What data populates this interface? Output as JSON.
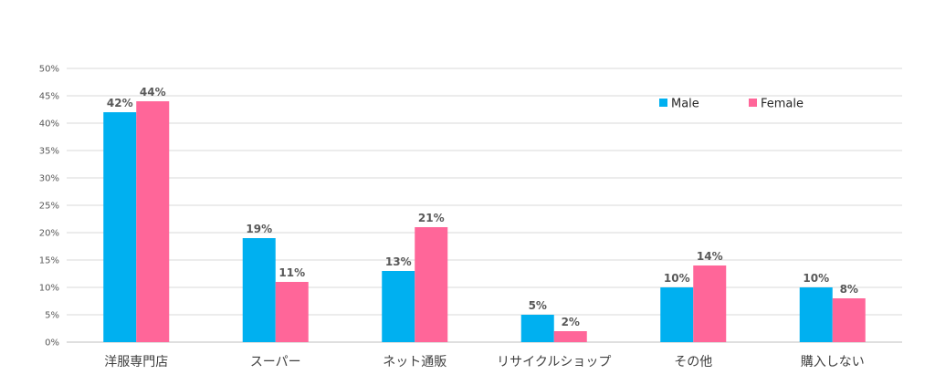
{
  "chart_data": {
    "type": "bar",
    "categories": [
      "洋服専門店",
      "スーパー",
      "ネット通販",
      "リサイクルショップ",
      "その他",
      "購入しない"
    ],
    "series": [
      {
        "name": "Male",
        "values": [
          42,
          19,
          13,
          5,
          10,
          10
        ],
        "labels": [
          "42%",
          "19%",
          "13%",
          "5%",
          "10%",
          "10%"
        ],
        "color": "#00B0F0"
      },
      {
        "name": "Female",
        "values": [
          44,
          11,
          21,
          2,
          14,
          8
        ],
        "labels": [
          "44%",
          "11%",
          "21%",
          "2%",
          "14%",
          "8%"
        ],
        "color": "#FF6699"
      }
    ],
    "ylim": [
      0,
      50
    ],
    "yticks": [
      0,
      5,
      10,
      15,
      20,
      25,
      30,
      35,
      40,
      45,
      50
    ],
    "ytick_labels": [
      "0%",
      "5%",
      "10%",
      "15%",
      "20%",
      "25%",
      "30%",
      "35%",
      "40%",
      "45%",
      "50%"
    ],
    "grid": true,
    "legend": "top-right",
    "title": "",
    "xlabel": "",
    "ylabel": ""
  }
}
